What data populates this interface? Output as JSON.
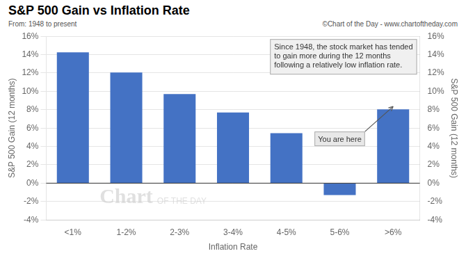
{
  "chart_data": {
    "type": "bar",
    "title": "S&P 500 Gain vs Inflation Rate",
    "subtitle": "From: 1948 to present",
    "credit": "©Chart of the Day - www.chartoftheday.com",
    "xlabel": "Inflation Rate",
    "ylabel": "S&P 500 Gain (12 months)",
    "y2label": "S&P 500 Gain (12 months)",
    "categories": [
      "<1%",
      "1-2%",
      "2-3%",
      "3-4%",
      "4-5%",
      "5-6%",
      ">6%"
    ],
    "values": [
      14.25,
      12.05,
      9.7,
      7.7,
      5.45,
      -1.3,
      8.05
    ],
    "color": "#4472c4",
    "ylim": [
      -4,
      16
    ],
    "yticks": [
      {
        "value": -4,
        "label": "-4%"
      },
      {
        "value": -2,
        "label": "-2%"
      },
      {
        "value": 0,
        "label": "0%"
      },
      {
        "value": 2,
        "label": "2%"
      },
      {
        "value": 4,
        "label": "4%"
      },
      {
        "value": 6,
        "label": "6%"
      },
      {
        "value": 8,
        "label": "8%"
      },
      {
        "value": 10,
        "label": "10%"
      },
      {
        "value": 12,
        "label": "12%"
      },
      {
        "value": 14,
        "label": "14%"
      },
      {
        "value": 16,
        "label": "16%"
      }
    ],
    "y2lim": [
      -4,
      16
    ],
    "y2ticks": [
      {
        "value": -4,
        "label": "-4%"
      },
      {
        "value": -2,
        "label": "-2%"
      },
      {
        "value": 0,
        "label": "0%"
      },
      {
        "value": 2,
        "label": "2%"
      },
      {
        "value": 4,
        "label": "4%"
      },
      {
        "value": 6,
        "label": "6%"
      },
      {
        "value": 8,
        "label": "8%"
      },
      {
        "value": 10,
        "label": "10%"
      },
      {
        "value": 12,
        "label": "12%"
      },
      {
        "value": 14,
        "label": "14%"
      },
      {
        "value": 16,
        "label": "16%"
      }
    ],
    "grid": true,
    "legend": false,
    "annotations": [
      {
        "text": "Since 1948, the stock market has tended\nto gain more during the 12 months\nfollowing a relatively low inflation rate."
      },
      {
        "text": "You are here",
        "category": ">6%"
      }
    ],
    "watermark": [
      "Chart",
      "OF THE DAY"
    ]
  }
}
